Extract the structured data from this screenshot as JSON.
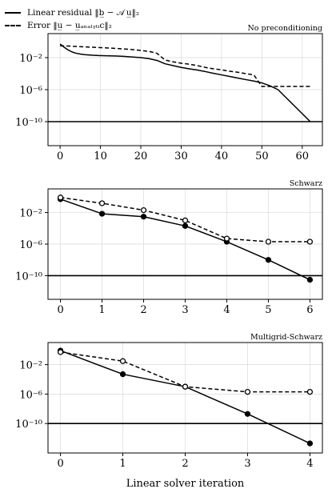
{
  "legend": {
    "residual": "Linear residual ‖b̲ − 𝒜 u̲‖₂",
    "error": "Error ‖u̲ − u̲ₐₙₐₗᵧₜᵢc‖₂"
  },
  "xlabel": "Linear solver iteration",
  "chart_data": [
    {
      "type": "line",
      "title": "No preconditioning",
      "xticks": [
        0,
        10,
        20,
        30,
        40,
        50,
        60
      ],
      "xlim": [
        -3,
        65
      ],
      "yscale": "log",
      "ylim": [
        1e-13,
        10.0
      ],
      "yticks": [
        0.01,
        1e-06,
        1e-10
      ],
      "ytick_labels": [
        "10⁻²",
        "10⁻⁶",
        "10⁻¹⁰"
      ],
      "hline": 1e-10,
      "grid": true,
      "series": [
        {
          "name": "Linear residual",
          "style": "solid",
          "markers": false,
          "x": [
            0,
            1,
            2,
            3,
            4,
            5,
            6,
            8,
            10,
            12,
            14,
            16,
            18,
            20,
            22,
            24,
            26,
            28,
            30,
            32,
            34,
            36,
            38,
            40,
            42,
            44,
            46,
            48,
            50,
            52,
            54,
            56,
            58,
            60,
            62
          ],
          "y": [
            0.5,
            0.2,
            0.09,
            0.05,
            0.035,
            0.028,
            0.024,
            0.02,
            0.018,
            0.017,
            0.016,
            0.014,
            0.012,
            0.01,
            0.0075,
            0.0045,
            0.0017,
            0.001,
            0.0006,
            0.0004,
            0.00028,
            0.00018,
            0.00011,
            7e-05,
            4.5e-05,
            2.8e-05,
            1.8e-05,
            1.2e-05,
            7e-06,
            3e-06,
            1e-06,
            1e-07,
            1e-08,
            1e-09,
            1e-10
          ]
        },
        {
          "name": "Error",
          "style": "dashed",
          "markers": false,
          "x": [
            0,
            2,
            4,
            6,
            8,
            10,
            12,
            14,
            16,
            18,
            20,
            22,
            24,
            26,
            28,
            30,
            32,
            34,
            36,
            38,
            40,
            42,
            44,
            46,
            48,
            50,
            52,
            54,
            56,
            58,
            60,
            62
          ],
          "y": [
            0.3,
            0.28,
            0.25,
            0.22,
            0.2,
            0.18,
            0.16,
            0.14,
            0.12,
            0.1,
            0.08,
            0.06,
            0.035,
            0.005,
            0.003,
            0.002,
            0.0015,
            0.001,
            0.0006,
            0.0004,
            0.0003,
            0.0002,
            0.00015,
            0.0001,
            7e-05,
            2.5e-06,
            2.5e-06,
            2.5e-06,
            2.5e-06,
            2.5e-06,
            2.5e-06,
            2.5e-06
          ]
        }
      ]
    },
    {
      "type": "line",
      "title": "Schwarz",
      "xticks": [
        0,
        1,
        2,
        3,
        4,
        5,
        6
      ],
      "xlim": [
        -0.3,
        6.3
      ],
      "yscale": "log",
      "ylim": [
        1e-13,
        10.0
      ],
      "yticks": [
        0.01,
        1e-06,
        1e-10
      ],
      "ytick_labels": [
        "10⁻²",
        "10⁻⁶",
        "10⁻¹⁰"
      ],
      "hline": 1e-10,
      "grid": true,
      "series": [
        {
          "name": "Linear residual",
          "style": "solid",
          "markers": "filled",
          "x": [
            0,
            1,
            2,
            3,
            4,
            5,
            6
          ],
          "y": [
            0.5,
            0.007,
            0.003,
            0.0002,
            2e-06,
            1e-08,
            3e-11
          ]
        },
        {
          "name": "Error",
          "style": "dashed",
          "markers": "open",
          "x": [
            0,
            1,
            2,
            3,
            4,
            5,
            6
          ],
          "y": [
            0.8,
            0.15,
            0.02,
            0.001,
            5e-06,
            2e-06,
            2e-06
          ]
        }
      ]
    },
    {
      "type": "line",
      "title": "Multigrid-Schwarz",
      "xticks": [
        0,
        1,
        2,
        3,
        4
      ],
      "xlim": [
        -0.2,
        4.2
      ],
      "yscale": "log",
      "ylim": [
        1e-14,
        10.0
      ],
      "yticks": [
        0.01,
        1e-06,
        1e-10
      ],
      "ytick_labels": [
        "10⁻²",
        "10⁻⁶",
        "10⁻¹⁰"
      ],
      "hline": 1e-10,
      "grid": true,
      "series": [
        {
          "name": "Linear residual",
          "style": "solid",
          "markers": "filled",
          "x": [
            0,
            1,
            2,
            3,
            4
          ],
          "y": [
            0.8,
            0.0005,
            1e-05,
            2e-09,
            2e-13
          ]
        },
        {
          "name": "Error",
          "style": "dashed",
          "markers": "open",
          "x": [
            0,
            1,
            2,
            3,
            4
          ],
          "y": [
            0.5,
            0.03,
            1e-05,
            2e-06,
            2e-06
          ]
        }
      ]
    }
  ]
}
